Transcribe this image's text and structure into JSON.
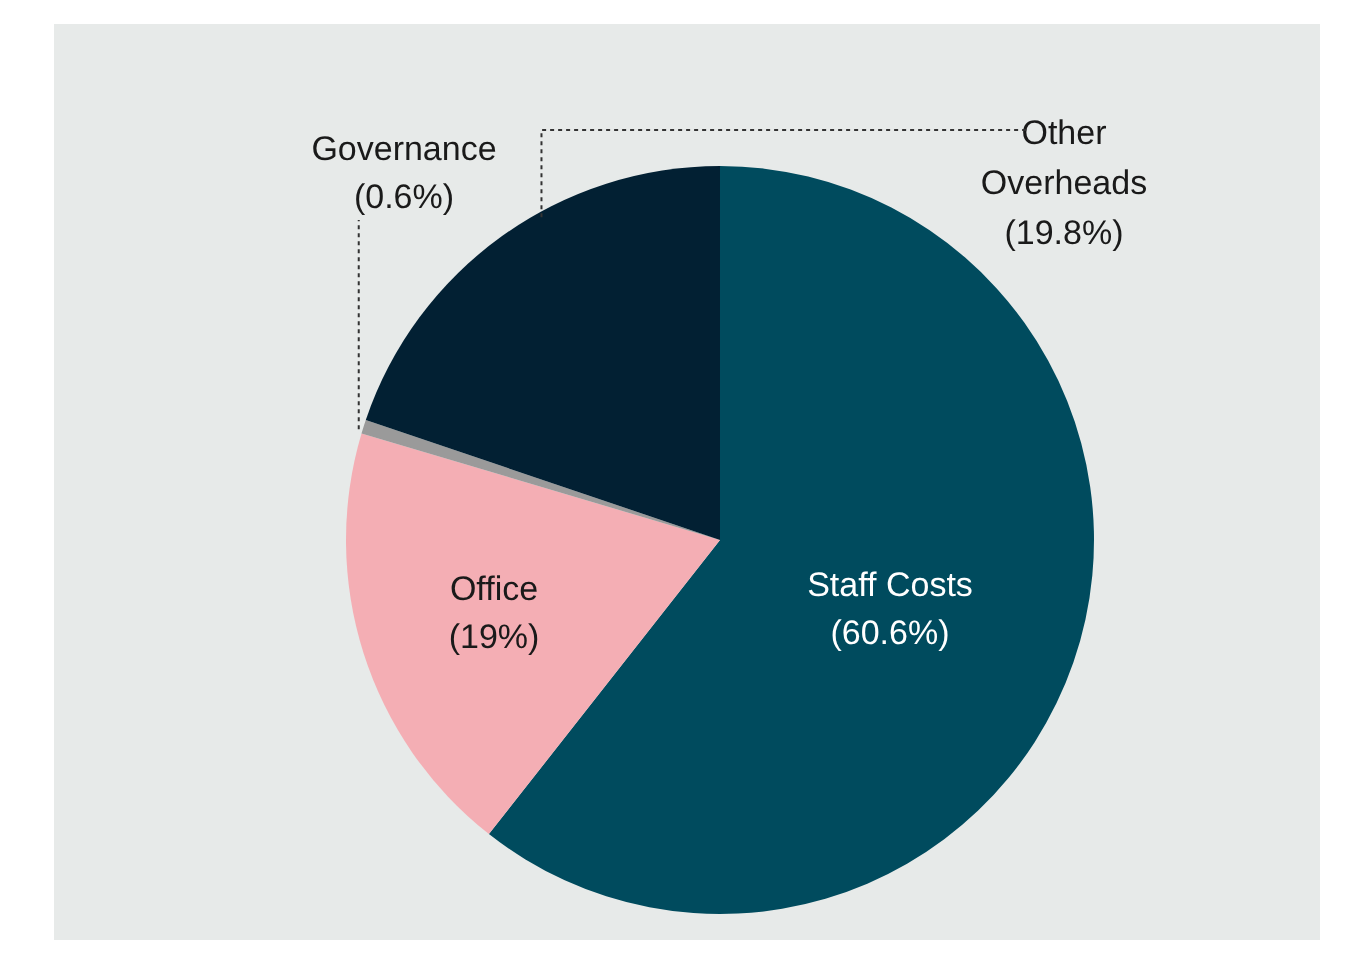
{
  "chart_data": {
    "type": "pie",
    "categories": [
      "Staff Costs",
      "Office",
      "Governance",
      "Other Overheads"
    ],
    "values": [
      60.6,
      19,
      0.6,
      19.8
    ],
    "colors": [
      "#004b5e",
      "#f4aeb4",
      "#9a9a9a",
      "#022033"
    ],
    "value_labels": [
      "(60.6%)",
      "(19%)",
      "(0.6%)",
      "(19.8%)"
    ]
  }
}
